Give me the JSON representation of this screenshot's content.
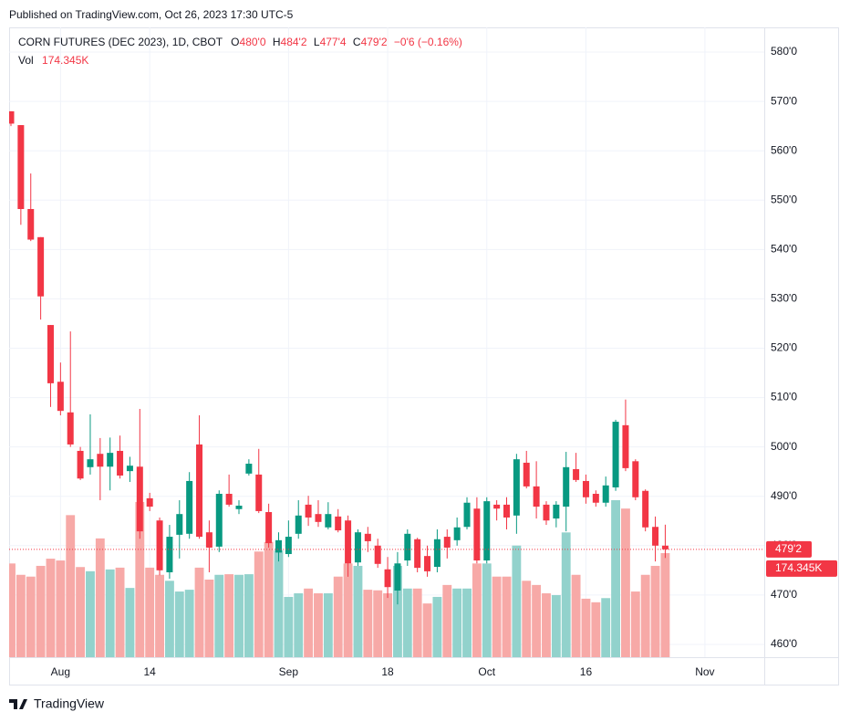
{
  "header": {
    "published": "Published on TradingView.com, Oct 26, 2023 17:30 UTC-5",
    "brand": "TradingView"
  },
  "chart_data": {
    "type": "candlestick",
    "title": "CORN FUTURES (DEC 2023), 1D, CBOT",
    "legend": [
      {
        "key": "O",
        "value": "480'0"
      },
      {
        "key": "H",
        "value": "484'2"
      },
      {
        "key": "L",
        "value": "477'4"
      },
      {
        "key": "C",
        "value": "479'2"
      }
    ],
    "change": "−0'6 (−0.16%)",
    "volume_name": "Vol",
    "volume_label": "174.345K",
    "last_price_label": "479'2",
    "categories": [
      null,
      null,
      null,
      null,
      null,
      "Aug",
      null,
      null,
      null,
      null,
      null,
      null,
      null,
      null,
      "14",
      null,
      null,
      null,
      null,
      null,
      null,
      null,
      null,
      null,
      null,
      null,
      null,
      null,
      "Sep",
      null,
      null,
      null,
      null,
      null,
      null,
      null,
      null,
      null,
      "18",
      null,
      null,
      null,
      null,
      null,
      null,
      null,
      null,
      null,
      "Oct",
      null,
      null,
      null,
      null,
      null,
      null,
      null,
      null,
      null,
      "16",
      null,
      null,
      null,
      null,
      null,
      null,
      null,
      null,
      null,
      null,
      null,
      "Nov"
    ],
    "open": [
      568,
      565.2,
      548.2,
      542.5,
      524.7,
      513.2,
      507,
      499.2,
      495.9,
      498.6,
      496,
      499.2,
      495.1,
      496,
      489.6,
      485.1,
      474.6,
      482.2,
      482.4,
      500.5,
      482.7,
      479.8,
      490.5,
      487.4,
      494.6,
      494.4,
      486.8,
      478.6,
      478.3,
      482.4,
      488.3,
      486.4,
      483.7,
      485.9,
      485.1,
      476.6,
      482.4,
      480,
      475.2,
      470.9,
      477,
      481.3,
      477.9,
      475.7,
      481.8,
      481.1,
      483.8,
      487.5,
      477,
      488.3,
      488.3,
      486.1,
      496.8,
      492,
      488.3,
      485.5,
      487.9,
      495.5,
      493.1,
      490.5,
      488.7,
      491.8,
      504.4,
      497.1,
      491.1,
      483.8,
      480,
      null,
      null,
      null,
      null
    ],
    "high": [
      568,
      565.2,
      555.4,
      542.5,
      524.7,
      517.1,
      523.4,
      500,
      506.6,
      501.8,
      501.9,
      502.3,
      498,
      507.7,
      490.7,
      485.7,
      484.2,
      489.2,
      494.9,
      506.4,
      485.1,
      491.2,
      494.4,
      489.2,
      497.5,
      499.6,
      488.5,
      482.7,
      485.1,
      489.2,
      490.1,
      489.2,
      488.8,
      487.4,
      486.1,
      483.3,
      483.8,
      481.4,
      477.7,
      478.7,
      483.3,
      481.6,
      480,
      483.3,
      483.3,
      485.7,
      489.8,
      489.8,
      489.8,
      489.2,
      489.8,
      498.6,
      499.2,
      497.1,
      489,
      489,
      499,
      498.8,
      494.4,
      491.2,
      494,
      505.5,
      509.6,
      497.5,
      491.4,
      485.9,
      484.25,
      null,
      null,
      null,
      null
    ],
    "low": [
      565,
      545,
      541.7,
      525.8,
      508.1,
      506.4,
      500,
      493.3,
      494.4,
      489.2,
      491.2,
      493.6,
      492.9,
      481.4,
      487,
      474,
      473.3,
      477.4,
      481.4,
      481.4,
      474.6,
      478.7,
      487.9,
      486.4,
      494.2,
      486.6,
      479.6,
      476.8,
      477.7,
      481.4,
      484,
      483.8,
      483.3,
      482.7,
      473.7,
      475.9,
      478.7,
      475.5,
      469.4,
      468.1,
      475.9,
      474.6,
      473.7,
      474.6,
      477.4,
      480,
      483.3,
      476.4,
      476.4,
      485.1,
      483.3,
      482.4,
      491.6,
      485.5,
      484.2,
      483.7,
      482.9,
      492.9,
      488.5,
      487.9,
      487.9,
      491.1,
      495.1,
      489.2,
      482.9,
      476.8,
      477.5,
      null,
      null,
      null,
      null
    ],
    "close": [
      565.5,
      548.2,
      542,
      530.5,
      512.9,
      507.3,
      500.5,
      493.6,
      497.5,
      496,
      498.8,
      494.2,
      496.2,
      482.9,
      487.9,
      475,
      481.8,
      486.4,
      493.1,
      481.8,
      479.6,
      490.5,
      488.3,
      488.1,
      496.6,
      487,
      480.5,
      481.1,
      481.8,
      486.1,
      485.7,
      484.8,
      486.4,
      483.1,
      476.4,
      482.7,
      480.9,
      476.3,
      471.6,
      476.4,
      482.4,
      475.5,
      474.8,
      481.3,
      479.6,
      483.7,
      488.7,
      477,
      489,
      487.5,
      485.7,
      497.5,
      492,
      487.9,
      485.1,
      488.3,
      495.9,
      493.3,
      489.8,
      488.7,
      492.2,
      505.1,
      495.7,
      489.8,
      483.7,
      480,
      479.25,
      null,
      null,
      null,
      null
    ],
    "volume": [
      157,
      138,
      135,
      153,
      165,
      162,
      238,
      151,
      144,
      199,
      147,
      150,
      116,
      260,
      150,
      138,
      128,
      110,
      113,
      150,
      130,
      138,
      139,
      138,
      139,
      177,
      193,
      179,
      101,
      107,
      115,
      107,
      107,
      135,
      157,
      153,
      113,
      112,
      107,
      153,
      115,
      115,
      90,
      101,
      121,
      115,
      115,
      157,
      157,
      135,
      135,
      187,
      128,
      121,
      107,
      104,
      209,
      138,
      98,
      92,
      99,
      263,
      249,
      110,
      138,
      153,
      174.345,
      null,
      null,
      null,
      null
    ],
    "ylim": [
      457.4,
      585
    ],
    "yticks": [
      {
        "value": 460,
        "label": "460'0"
      },
      {
        "value": 470,
        "label": "470'0"
      },
      {
        "value": 480,
        "label": "480'0"
      },
      {
        "value": 490,
        "label": "490'0"
      },
      {
        "value": 500,
        "label": "500'0"
      },
      {
        "value": 510,
        "label": "510'0"
      },
      {
        "value": 520,
        "label": "520'0"
      },
      {
        "value": 530,
        "label": "530'0"
      },
      {
        "value": 540,
        "label": "540'0"
      },
      {
        "value": 550,
        "label": "550'0"
      },
      {
        "value": 560,
        "label": "560'0"
      },
      {
        "value": 570,
        "label": "570'0"
      },
      {
        "value": 580,
        "label": "580'0"
      }
    ],
    "grid": true,
    "up_color": "#089981",
    "down_color": "#f23645",
    "volume_up_color": "#92d2cc",
    "volume_down_color": "#f7a9a7"
  }
}
